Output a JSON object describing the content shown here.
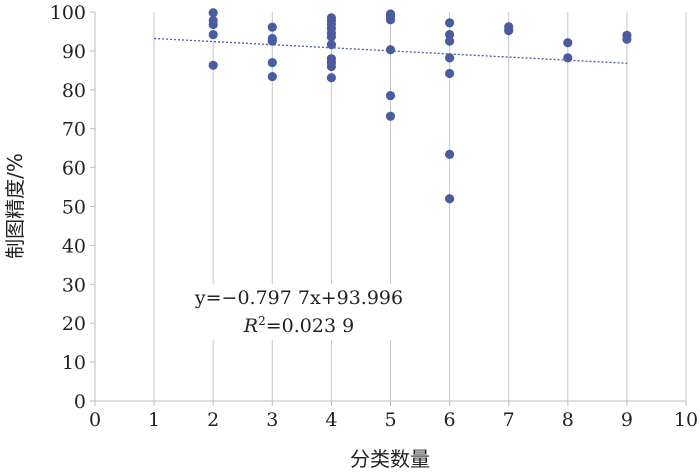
{
  "chart_data": {
    "type": "scatter",
    "title": "",
    "xlabel": "分类数量",
    "ylabel": "制图精度/%",
    "xlim": [
      0,
      10
    ],
    "ylim": [
      0,
      100
    ],
    "x_ticks": [
      "0",
      "1",
      "2",
      "3",
      "4",
      "5",
      "6",
      "7",
      "8",
      "9",
      "10"
    ],
    "y_ticks": [
      "0",
      "10",
      "20",
      "30",
      "40",
      "50",
      "60",
      "70",
      "80",
      "90",
      "100"
    ],
    "grid": "vertical",
    "point_color": "#4a5ba0",
    "trendline_color": "#4a5ba0",
    "points": [
      {
        "x": 2,
        "y": 99.8
      },
      {
        "x": 2,
        "y": 97.8
      },
      {
        "x": 2,
        "y": 96.8
      },
      {
        "x": 2,
        "y": 94.2
      },
      {
        "x": 2,
        "y": 86.3
      },
      {
        "x": 3,
        "y": 96.1
      },
      {
        "x": 3,
        "y": 93.2
      },
      {
        "x": 3,
        "y": 92.5
      },
      {
        "x": 3,
        "y": 87.0
      },
      {
        "x": 3,
        "y": 83.4
      },
      {
        "x": 4,
        "y": 98.5
      },
      {
        "x": 4,
        "y": 97.8
      },
      {
        "x": 4,
        "y": 96.9
      },
      {
        "x": 4,
        "y": 95.8
      },
      {
        "x": 4,
        "y": 94.6
      },
      {
        "x": 4,
        "y": 93.6
      },
      {
        "x": 4,
        "y": 91.6
      },
      {
        "x": 4,
        "y": 88.0
      },
      {
        "x": 4,
        "y": 87.0
      },
      {
        "x": 4,
        "y": 86.0
      },
      {
        "x": 4,
        "y": 83.1
      },
      {
        "x": 5,
        "y": 99.5
      },
      {
        "x": 5,
        "y": 98.9
      },
      {
        "x": 5,
        "y": 98.0
      },
      {
        "x": 5,
        "y": 90.3
      },
      {
        "x": 5,
        "y": 78.5
      },
      {
        "x": 5,
        "y": 73.2
      },
      {
        "x": 6,
        "y": 97.2
      },
      {
        "x": 6,
        "y": 94.2
      },
      {
        "x": 6,
        "y": 92.5
      },
      {
        "x": 6,
        "y": 88.2
      },
      {
        "x": 6,
        "y": 84.2
      },
      {
        "x": 6,
        "y": 63.4
      },
      {
        "x": 6,
        "y": 52.0
      },
      {
        "x": 7,
        "y": 96.2
      },
      {
        "x": 7,
        "y": 95.2
      },
      {
        "x": 8,
        "y": 92.1
      },
      {
        "x": 8,
        "y": 88.2
      },
      {
        "x": 9,
        "y": 94.0
      },
      {
        "x": 9,
        "y": 93.0
      }
    ],
    "trendline": {
      "slope": -0.7977,
      "intercept": 93.996,
      "x_range": [
        1,
        9
      ]
    },
    "annotation": {
      "equation": "y=−0.797 7x+93.996",
      "r2_symbol": "R",
      "r2_sup": "2",
      "r2_value": "=0.023 9"
    }
  }
}
